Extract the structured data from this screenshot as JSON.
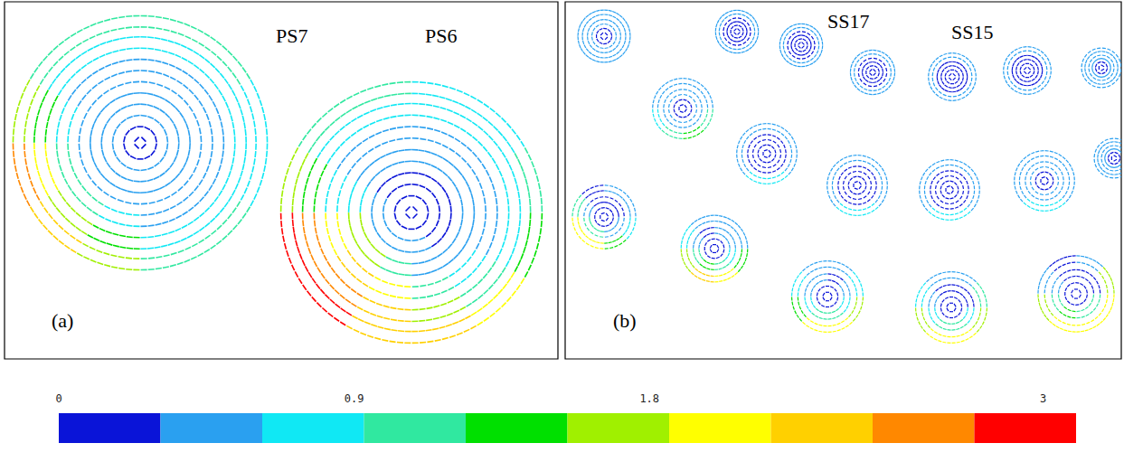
{
  "chart_data": {
    "type": "vector_field",
    "tick_labels": false,
    "panels": [
      {
        "label": {
          "text": "(a)",
          "x": 52,
          "y": 341
        },
        "xlim": [
          0,
          612
        ],
        "ylim": [
          0,
          395
        ],
        "texts": [
          {
            "text": "PS7",
            "x": 300,
            "y": 26
          },
          {
            "text": "PS6",
            "x": 465,
            "y": 26
          }
        ],
        "ring_radii": [
          0.08,
          0.25,
          0.42,
          0.59,
          0.76,
          0.92
        ],
        "vortices": [
          {
            "center": [
              150,
              156
            ],
            "radius": 146,
            "speeds": [
              [
                0.15
              ],
              [
                0.4,
                0.4,
                0.4,
                0.4,
                0.4,
                0.4,
                0.4,
                0.4,
                0.4,
                0.4,
                0.4,
                0.4
              ],
              [
                0.5,
                0.5,
                0.5,
                0.5,
                0.5,
                0.5,
                0.6,
                0.6,
                0.6,
                0.5,
                0.5,
                0.5
              ],
              [
                0.55,
                0.55,
                0.55,
                0.55,
                0.6,
                0.7,
                1.2,
                1.2,
                0.9,
                0.6,
                0.55,
                0.55
              ],
              [
                0.7,
                0.7,
                0.7,
                0.7,
                0.8,
                1.3,
                1.9,
                1.7,
                1.3,
                0.9,
                0.7,
                0.7
              ],
              [
                0.9,
                0.95,
                0.95,
                1.0,
                1.1,
                1.8,
                2.5,
                2.2,
                1.6,
                1.2,
                0.95,
                0.9
              ]
            ]
          },
          {
            "center": [
              450,
              233
            ],
            "radius": 150,
            "speeds": [
              [
                0.15
              ],
              [
                0.3,
                0.3,
                0.3,
                0.3,
                0.3,
                0.4,
                0.6,
                0.6,
                0.5,
                0.4,
                0.3,
                0.3
              ],
              [
                0.5,
                0.5,
                0.5,
                0.5,
                0.5,
                0.7,
                1.6,
                1.8,
                1.0,
                0.6,
                0.5,
                0.5
              ],
              [
                0.6,
                0.6,
                0.6,
                0.6,
                0.6,
                0.9,
                2.0,
                2.4,
                1.9,
                1.0,
                0.7,
                0.6
              ],
              [
                0.8,
                0.75,
                0.75,
                0.75,
                0.8,
                1.4,
                2.6,
                2.7,
                2.3,
                1.7,
                1.2,
                0.9
              ],
              [
                1.0,
                0.9,
                0.9,
                0.95,
                1.0,
                1.7,
                3.0,
                2.9,
                2.4,
                2.3,
                1.9,
                1.3
              ]
            ]
          }
        ]
      },
      {
        "label": {
          "text": "(b)",
          "x": 53,
          "y": 341
        },
        "xlim": [
          0,
          615
        ],
        "ylim": [
          0,
          395
        ],
        "texts": [
          {
            "text": "SS17",
            "x": 290,
            "y": 10
          },
          {
            "text": "SS15",
            "x": 427,
            "y": 22
          }
        ],
        "ring_radii": [
          0.18,
          0.48,
          0.8
        ],
        "vortices": [
          {
            "center": [
              43,
              38
            ],
            "radius": 33,
            "speeds": [
              [
                0.15
              ],
              [
                0.4,
                0.4,
                0.4,
                0.4,
                0.4,
                0.4,
                0.4,
                0.4
              ],
              [
                0.6,
                0.6,
                0.6,
                0.6,
                0.6,
                0.6,
                0.6,
                0.6
              ]
            ]
          },
          {
            "center": [
              190,
              33
            ],
            "radius": 27,
            "speeds": [
              [
                0.15
              ],
              [
                0.2,
                0.2,
                0.2,
                0.2,
                0.2,
                0.2,
                0.2,
                0.2
              ],
              [
                0.5,
                0.5,
                0.5,
                0.5,
                0.5,
                0.5,
                0.5,
                0.5
              ]
            ]
          },
          {
            "center": [
              261,
              48
            ],
            "radius": 27,
            "speeds": [
              [
                0.15
              ],
              [
                0.2,
                0.2,
                0.2,
                0.2,
                0.2,
                0.2,
                0.2,
                0.2
              ],
              [
                0.5,
                0.5,
                0.5,
                0.5,
                0.5,
                0.5,
                0.5,
                0.5
              ]
            ]
          },
          {
            "center": [
              340,
              78
            ],
            "radius": 28,
            "speeds": [
              [
                0.15
              ],
              [
                0.2,
                0.2,
                0.2,
                0.2,
                0.2,
                0.2,
                0.2,
                0.2
              ],
              [
                0.5,
                0.5,
                0.5,
                0.5,
                0.5,
                0.5,
                0.5,
                0.5
              ]
            ]
          },
          {
            "center": [
              428,
              83
            ],
            "radius": 30,
            "speeds": [
              [
                0.15
              ],
              [
                0.2,
                0.2,
                0.2,
                0.2,
                0.2,
                0.2,
                0.2,
                0.2
              ],
              [
                0.5,
                0.5,
                0.5,
                0.5,
                0.5,
                0.5,
                0.5,
                0.5
              ]
            ]
          },
          {
            "center": [
              511,
              76
            ],
            "radius": 30,
            "speeds": [
              [
                0.15
              ],
              [
                0.3,
                0.3,
                0.3,
                0.3,
                0.3,
                0.3,
                0.3,
                0.3
              ],
              [
                0.5,
                0.5,
                0.5,
                0.5,
                0.5,
                0.5,
                0.5,
                0.5
              ]
            ]
          },
          {
            "center": [
              593,
              73
            ],
            "radius": 25,
            "speeds": [
              [
                0.15
              ],
              [
                0.4,
                0.4,
                0.4,
                0.4,
                0.4,
                0.4,
                0.4,
                0.4
              ],
              [
                0.5,
                0.5,
                0.5,
                0.5,
                0.5,
                0.5,
                0.5,
                0.5
              ]
            ]
          },
          {
            "center": [
              130,
              118
            ],
            "radius": 38,
            "speeds": [
              [
                0.15
              ],
              [
                0.4,
                0.4,
                0.4,
                0.4,
                0.4,
                0.4,
                0.4,
                0.4
              ],
              [
                0.5,
                0.5,
                0.5,
                0.5,
                0.7,
                1.1,
                1.4,
                1.0
              ]
            ]
          },
          {
            "center": [
              223,
              168
            ],
            "radius": 38,
            "speeds": [
              [
                0.15
              ],
              [
                0.3,
                0.3,
                0.3,
                0.3,
                0.3,
                0.3,
                0.3,
                0.3
              ],
              [
                0.5,
                0.5,
                0.5,
                0.5,
                0.5,
                0.7,
                0.7,
                0.5
              ]
            ]
          },
          {
            "center": [
              323,
              203
            ],
            "radius": 38,
            "speeds": [
              [
                0.15
              ],
              [
                0.2,
                0.2,
                0.2,
                0.2,
                0.2,
                0.2,
                0.2,
                0.2
              ],
              [
                0.5,
                0.5,
                0.5,
                0.5,
                0.6,
                0.7,
                0.7,
                0.6
              ]
            ]
          },
          {
            "center": [
              425,
              208
            ],
            "radius": 38,
            "speeds": [
              [
                0.15
              ],
              [
                0.2,
                0.2,
                0.2,
                0.2,
                0.2,
                0.2,
                0.2,
                0.2
              ],
              [
                0.5,
                0.5,
                0.5,
                0.5,
                0.5,
                0.7,
                0.7,
                0.5
              ]
            ]
          },
          {
            "center": [
              530,
              198
            ],
            "radius": 38,
            "speeds": [
              [
                0.15
              ],
              [
                0.4,
                0.4,
                0.4,
                0.4,
                0.4,
                0.4,
                0.4,
                0.4
              ],
              [
                0.5,
                0.5,
                0.5,
                0.5,
                0.5,
                0.7,
                0.7,
                0.5
              ]
            ]
          },
          {
            "center": [
              607,
              173
            ],
            "radius": 25,
            "speeds": [
              [
                0.15
              ],
              [
                0.5,
                0.5,
                0.5,
                0.5,
                0.5,
                0.5,
                0.5,
                0.5
              ],
              [
                0.6,
                0.6,
                0.6,
                0.6,
                0.6,
                0.6,
                0.6,
                0.6
              ]
            ]
          },
          {
            "center": [
              43,
              238
            ],
            "radius": 40,
            "speeds": [
              [
                0.15
              ],
              [
                0.3,
                0.3,
                0.3,
                0.6,
                1.2,
                1.0,
                0.5,
                0.4
              ],
              [
                0.5,
                0.5,
                0.3,
                1.0,
                2.1,
                1.9,
                1.4,
                0.8
              ]
            ]
          },
          {
            "center": [
              165,
              273
            ],
            "radius": 42,
            "speeds": [
              [
                0.15
              ],
              [
                0.4,
                0.4,
                0.3,
                0.5,
                1.0,
                1.3,
                1.1,
                0.7
              ],
              [
                0.6,
                0.5,
                0.5,
                0.7,
                1.8,
                2.3,
                2.0,
                1.4
              ]
            ]
          },
          {
            "center": [
              290,
              326
            ],
            "radius": 45,
            "speeds": [
              [
                0.15
              ],
              [
                0.4,
                0.3,
                0.4,
                0.5,
                0.8,
                1.2,
                1.2,
                0.8
              ],
              [
                0.8,
                0.5,
                0.5,
                0.7,
                1.5,
                2.0,
                2.0,
                1.6
              ]
            ]
          },
          {
            "center": [
              427,
              338
            ],
            "radius": 45,
            "speeds": [
              [
                0.15
              ],
              [
                0.3,
                0.3,
                0.3,
                0.4,
                0.9,
                1.2,
                1.2,
                0.9
              ],
              [
                1.0,
                0.5,
                0.5,
                0.8,
                1.6,
                2.1,
                2.1,
                1.8
              ]
            ]
          },
          {
            "center": [
              565,
              323
            ],
            "radius": 48,
            "speeds": [
              [
                0.15
              ],
              [
                0.3,
                0.2,
                0.2,
                0.4,
                1.0,
                1.3,
                1.2,
                1.1
              ],
              [
                1.7,
                0.6,
                0.3,
                0.6,
                1.6,
                2.1,
                2.1,
                2.0
              ]
            ]
          }
        ]
      }
    ],
    "colorbar": {
      "range": [
        0,
        3.1
      ],
      "ticks": [
        0,
        0.9,
        1.8,
        3
      ],
      "colors": [
        "#0a14d8",
        "#2aa0f0",
        "#10e8f4",
        "#30e8a0",
        "#00e000",
        "#a0f000",
        "#ffff00",
        "#ffd000",
        "#ff8800",
        "#ff0000"
      ]
    }
  }
}
